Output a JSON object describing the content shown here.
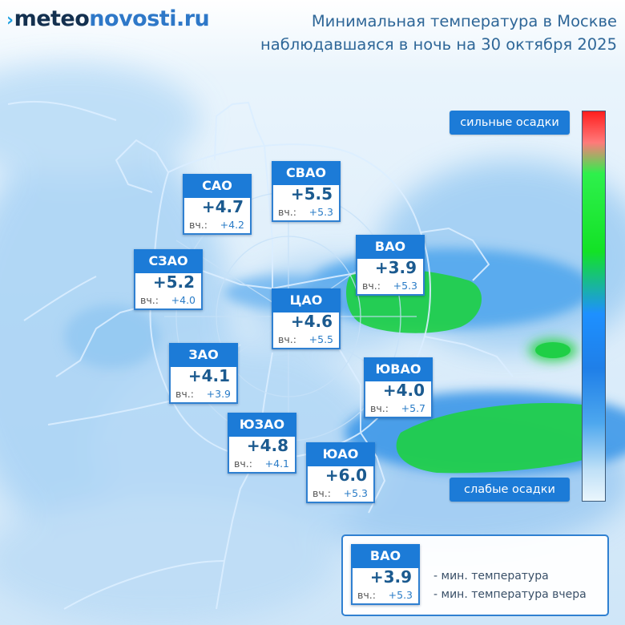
{
  "brand": {
    "mark": "›",
    "part1": "meteo",
    "part2": "novosti.ru"
  },
  "title": {
    "line1": "Минимальная температура в Москве",
    "line2": "наблюдавшаяся в ночь на 30 октября 2025"
  },
  "districts": [
    {
      "name": "САО",
      "temp": "+4.7",
      "yesterday_label": "вч.:",
      "yesterday": "+4.2"
    },
    {
      "name": "СВАО",
      "temp": "+5.5",
      "yesterday_label": "вч.:",
      "yesterday": "+5.3"
    },
    {
      "name": "СЗАО",
      "temp": "+5.2",
      "yesterday_label": "вч.:",
      "yesterday": "+4.0"
    },
    {
      "name": "ВАО",
      "temp": "+3.9",
      "yesterday_label": "вч.:",
      "yesterday": "+5.3"
    },
    {
      "name": "ЦАО",
      "temp": "+4.6",
      "yesterday_label": "вч.:",
      "yesterday": "+5.5"
    },
    {
      "name": "ЗАО",
      "temp": "+4.1",
      "yesterday_label": "вч.:",
      "yesterday": "+3.9"
    },
    {
      "name": "ЮВАО",
      "temp": "+4.0",
      "yesterday_label": "вч.:",
      "yesterday": "+5.7"
    },
    {
      "name": "ЮЗАО",
      "temp": "+4.8",
      "yesterday_label": "вч.:",
      "yesterday": "+4.1"
    },
    {
      "name": "ЮАО",
      "temp": "+6.0",
      "yesterday_label": "вч.:",
      "yesterday": "+5.3"
    }
  ],
  "scale": {
    "top_label": "сильные осадки",
    "bottom_label": "слабые осадки"
  },
  "legend": {
    "sample": {
      "name": "ВАО",
      "temp": "+3.9",
      "yesterday_label": "вч.:",
      "yesterday": "+5.3"
    },
    "line1": "- мин. температура",
    "line2": "- мин. температура вчера"
  },
  "colors": {
    "accent": "#1c7bd7",
    "precip_light": "#a8d2f4",
    "precip_medium": "#3f9ae8",
    "precip_heavy": "#1fd43a"
  }
}
